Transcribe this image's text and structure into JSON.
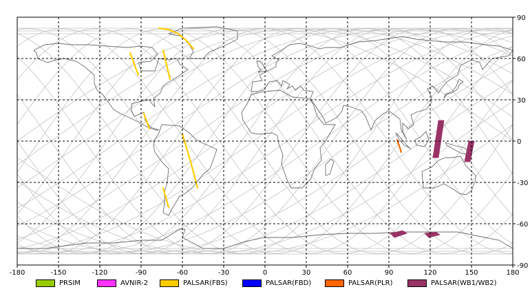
{
  "map": {
    "xlim": [
      -180,
      180
    ],
    "ylim": [
      -90,
      90
    ],
    "x_ticks": [
      -180,
      -150,
      -120,
      -90,
      -60,
      -30,
      0,
      30,
      60,
      90,
      120,
      150,
      180
    ],
    "y_ticks": [
      90,
      60,
      30,
      0,
      -30,
      -60,
      -90
    ],
    "x_tick_labels": [
      "-180",
      "-150",
      "-120",
      "-90",
      "-60",
      "-30",
      "0",
      "30",
      "60",
      "90",
      "120",
      "150",
      "180"
    ],
    "y_tick_labels": [
      "90",
      "60",
      "30",
      "0",
      "-30",
      "-60",
      "-90"
    ],
    "grid": true,
    "colors": {
      "coast": "#6b6b6b",
      "orbit": "#c2c2c2",
      "grid": "#000000"
    }
  },
  "legend": [
    {
      "label": "PRSIM",
      "color": "#99cc00"
    },
    {
      "label": "AVNIR-2",
      "color": "#ff33ff"
    },
    {
      "label": "PALSAR(FBS)",
      "color": "#ffcc00"
    },
    {
      "label": "PALSAR(FBD)",
      "color": "#0000ff"
    },
    {
      "label": "PALSAR(PLR)",
      "color": "#ff6600"
    },
    {
      "label": "PALSAR(WB1/WB2)",
      "color": "#993366"
    }
  ],
  "observations": [
    {
      "sensor": "PALSAR(FBS)",
      "color": "#ffcc00",
      "path": [
        [
          -77,
          82
        ],
        [
          -70,
          81
        ],
        [
          -63,
          78
        ],
        [
          -57,
          73
        ],
        [
          -52,
          67
        ]
      ]
    },
    {
      "sensor": "PALSAR(FBS)",
      "color": "#ffcc00",
      "path": [
        [
          -98,
          64
        ],
        [
          -92,
          48
        ]
      ]
    },
    {
      "sensor": "PALSAR(FBS)",
      "color": "#ffcc00",
      "path": [
        [
          -74,
          66
        ],
        [
          -69,
          45
        ]
      ]
    },
    {
      "sensor": "PALSAR(FBS)",
      "color": "#ffcc00",
      "path": [
        [
          -88,
          20
        ],
        [
          -84,
          9
        ]
      ]
    },
    {
      "sensor": "PALSAR(FBS)",
      "color": "#ffcc00",
      "path": [
        [
          -60,
          5
        ],
        [
          -54,
          -15
        ],
        [
          -49,
          -34
        ]
      ]
    },
    {
      "sensor": "PALSAR(FBS)",
      "color": "#ffcc00",
      "path": [
        [
          -74,
          -34
        ],
        [
          -70,
          -48
        ]
      ]
    },
    {
      "sensor": "PALSAR(PLR)",
      "color": "#ff6600",
      "path": [
        [
          96,
          1
        ],
        [
          99,
          -8
        ]
      ]
    },
    {
      "sensor": "PALSAR(WB1/WB2)",
      "color": "#993366",
      "polygon": [
        [
          126,
          15
        ],
        [
          130,
          15
        ],
        [
          126,
          -12
        ],
        [
          122,
          -12
        ]
      ]
    },
    {
      "sensor": "PALSAR(WB1/WB2)",
      "color": "#993366",
      "polygon": [
        [
          148,
          0
        ],
        [
          152,
          0
        ],
        [
          149,
          -15
        ],
        [
          145,
          -15
        ]
      ]
    },
    {
      "sensor": "PALSAR(WB1/WB2)",
      "color": "#993366",
      "polygon": [
        [
          91,
          -67
        ],
        [
          100,
          -65
        ],
        [
          103,
          -67
        ],
        [
          94,
          -70
        ]
      ]
    },
    {
      "sensor": "PALSAR(WB1/WB2)",
      "color": "#993366",
      "polygon": [
        [
          116,
          -67
        ],
        [
          124,
          -66
        ],
        [
          127,
          -68
        ],
        [
          119,
          -70
        ]
      ]
    }
  ],
  "coastlines": [
    [
      [
        -168,
        66
      ],
      [
        -160,
        70
      ],
      [
        -150,
        71
      ],
      [
        -140,
        70
      ],
      [
        -128,
        70
      ],
      [
        -115,
        69
      ],
      [
        -100,
        68
      ],
      [
        -90,
        69
      ],
      [
        -82,
        68
      ],
      [
        -78,
        63
      ],
      [
        -83,
        58
      ],
      [
        -92,
        57
      ],
      [
        -90,
        51
      ],
      [
        -80,
        51
      ],
      [
        -77,
        60
      ],
      [
        -70,
        59
      ],
      [
        -64,
        60
      ],
      [
        -62,
        56
      ],
      [
        -56,
        52
      ],
      [
        -66,
        45
      ],
      [
        -70,
        43
      ],
      [
        -74,
        40
      ],
      [
        -76,
        35
      ],
      [
        -81,
        31
      ],
      [
        -80,
        25
      ],
      [
        -82,
        27
      ],
      [
        -84,
        30
      ],
      [
        -90,
        29
      ],
      [
        -97,
        27
      ],
      [
        -97,
        22
      ],
      [
        -95,
        18
      ],
      [
        -88,
        21
      ],
      [
        -87,
        15
      ],
      [
        -83,
        10
      ],
      [
        -80,
        9
      ],
      [
        -77,
        8
      ],
      [
        -79,
        8
      ],
      [
        -85,
        10
      ],
      [
        -92,
        14
      ],
      [
        -105,
        20
      ],
      [
        -110,
        23
      ],
      [
        -115,
        30
      ],
      [
        -118,
        34
      ],
      [
        -122,
        37
      ],
      [
        -124,
        42
      ],
      [
        -124,
        48
      ],
      [
        -131,
        54
      ],
      [
        -137,
        58
      ],
      [
        -146,
        60
      ],
      [
        -152,
        59
      ],
      [
        -158,
        57
      ],
      [
        -165,
        60
      ],
      [
        -166,
        64
      ],
      [
        -168,
        66
      ]
    ],
    [
      [
        -75,
        12
      ],
      [
        -62,
        11
      ],
      [
        -55,
        6
      ],
      [
        -50,
        1
      ],
      [
        -44,
        -2
      ],
      [
        -35,
        -6
      ],
      [
        -37,
        -12
      ],
      [
        -40,
        -20
      ],
      [
        -45,
        -24
      ],
      [
        -48,
        -28
      ],
      [
        -53,
        -34
      ],
      [
        -58,
        -38
      ],
      [
        -62,
        -40
      ],
      [
        -65,
        -45
      ],
      [
        -68,
        -50
      ],
      [
        -70,
        -54
      ],
      [
        -74,
        -52
      ],
      [
        -73,
        -45
      ],
      [
        -73,
        -37
      ],
      [
        -71,
        -30
      ],
      [
        -70,
        -20
      ],
      [
        -75,
        -15
      ],
      [
        -80,
        -8
      ],
      [
        -81,
        -3
      ],
      [
        -80,
        1
      ],
      [
        -77,
        6
      ],
      [
        -75,
        12
      ]
    ],
    [
      [
        -55,
        60
      ],
      [
        -45,
        60
      ],
      [
        -40,
        65
      ],
      [
        -30,
        69
      ],
      [
        -20,
        74
      ],
      [
        -20,
        80
      ],
      [
        -35,
        83
      ],
      [
        -60,
        82
      ],
      [
        -70,
        78
      ],
      [
        -60,
        76
      ],
      [
        -55,
        70
      ],
      [
        -52,
        65
      ],
      [
        -55,
        60
      ]
    ],
    [
      [
        -10,
        36
      ],
      [
        -9,
        43
      ],
      [
        -2,
        44
      ],
      [
        -4,
        48
      ],
      [
        2,
        51
      ],
      [
        8,
        54
      ],
      [
        8,
        57
      ],
      [
        10,
        59
      ],
      [
        5,
        62
      ],
      [
        12,
        66
      ],
      [
        18,
        70
      ],
      [
        25,
        71
      ],
      [
        30,
        70
      ],
      [
        40,
        67
      ],
      [
        44,
        68
      ],
      [
        55,
        68
      ],
      [
        68,
        72
      ],
      [
        80,
        73
      ],
      [
        100,
        76
      ],
      [
        110,
        74
      ],
      [
        130,
        72
      ],
      [
        145,
        72
      ],
      [
        160,
        70
      ],
      [
        170,
        69
      ],
      [
        180,
        66
      ],
      [
        177,
        62
      ],
      [
        165,
        60
      ],
      [
        158,
        52
      ],
      [
        156,
        57
      ],
      [
        150,
        59
      ],
      [
        142,
        55
      ],
      [
        140,
        48
      ],
      [
        132,
        43
      ],
      [
        128,
        38
      ],
      [
        126,
        35
      ],
      [
        122,
        40
      ],
      [
        118,
        38
      ],
      [
        121,
        32
      ],
      [
        121,
        28
      ],
      [
        117,
        23
      ],
      [
        110,
        21
      ],
      [
        106,
        19
      ],
      [
        108,
        12
      ],
      [
        104,
        9
      ],
      [
        100,
        13
      ],
      [
        100,
        7
      ],
      [
        103,
        1
      ],
      [
        99,
        8
      ],
      [
        98,
        16
      ],
      [
        94,
        19
      ],
      [
        90,
        22
      ],
      [
        86,
        20
      ],
      [
        80,
        15
      ],
      [
        77,
        8
      ],
      [
        73,
        18
      ],
      [
        70,
        22
      ],
      [
        62,
        25
      ],
      [
        57,
        26
      ],
      [
        56,
        22
      ],
      [
        52,
        17
      ],
      [
        44,
        13
      ],
      [
        43,
        16
      ],
      [
        39,
        22
      ],
      [
        35,
        28
      ],
      [
        33,
        31
      ],
      [
        35,
        36
      ],
      [
        28,
        37
      ],
      [
        26,
        40
      ],
      [
        22,
        37
      ],
      [
        20,
        40
      ],
      [
        16,
        38
      ],
      [
        18,
        41
      ],
      [
        13,
        44
      ],
      [
        12,
        40
      ],
      [
        9,
        44
      ],
      [
        3,
        43
      ],
      [
        -1,
        37
      ],
      [
        -6,
        36
      ],
      [
        -10,
        36
      ]
    ],
    [
      [
        -17,
        21
      ],
      [
        -16,
        15
      ],
      [
        -10,
        6
      ],
      [
        -5,
        5
      ],
      [
        5,
        6
      ],
      [
        9,
        4
      ],
      [
        10,
        -2
      ],
      [
        13,
        -10
      ],
      [
        12,
        -17
      ],
      [
        16,
        -28
      ],
      [
        19,
        -34
      ],
      [
        27,
        -34
      ],
      [
        33,
        -28
      ],
      [
        36,
        -20
      ],
      [
        41,
        -14
      ],
      [
        40,
        -5
      ],
      [
        44,
        0
      ],
      [
        51,
        12
      ],
      [
        43,
        12
      ],
      [
        38,
        18
      ],
      [
        35,
        27
      ],
      [
        32,
        31
      ],
      [
        20,
        32
      ],
      [
        11,
        37
      ],
      [
        0,
        36
      ],
      [
        -10,
        34
      ],
      [
        -13,
        27
      ],
      [
        -17,
        21
      ]
    ],
    [
      [
        114,
        -22
      ],
      [
        115,
        -34
      ],
      [
        123,
        -34
      ],
      [
        130,
        -31
      ],
      [
        137,
        -35
      ],
      [
        141,
        -38
      ],
      [
        146,
        -39
      ],
      [
        150,
        -36
      ],
      [
        153,
        -28
      ],
      [
        153,
        -25
      ],
      [
        146,
        -18
      ],
      [
        142,
        -11
      ],
      [
        136,
        -12
      ],
      [
        131,
        -12
      ],
      [
        126,
        -14
      ],
      [
        121,
        -19
      ],
      [
        114,
        -22
      ]
    ],
    [
      [
        95,
        6
      ],
      [
        98,
        3
      ],
      [
        103,
        -3
      ],
      [
        106,
        -6
      ],
      [
        105,
        -5
      ],
      [
        101,
        -3
      ],
      [
        97,
        2
      ],
      [
        95,
        6
      ]
    ],
    [
      [
        109,
        1
      ],
      [
        110,
        -3
      ],
      [
        116,
        -4
      ],
      [
        119,
        1
      ],
      [
        117,
        7
      ],
      [
        113,
        3
      ],
      [
        109,
        1
      ]
    ],
    [
      [
        131,
        -1
      ],
      [
        137,
        -3
      ],
      [
        145,
        -5
      ],
      [
        150,
        -10
      ],
      [
        143,
        -9
      ],
      [
        139,
        -7
      ],
      [
        132,
        -3
      ],
      [
        131,
        -1
      ]
    ],
    [
      [
        -5,
        50
      ],
      [
        1,
        51
      ],
      [
        -1,
        55
      ],
      [
        -3,
        58
      ],
      [
        -6,
        58
      ],
      [
        -5,
        54
      ],
      [
        -3,
        52
      ],
      [
        -5,
        50
      ]
    ],
    [
      [
        130,
        31
      ],
      [
        132,
        34
      ],
      [
        136,
        35
      ],
      [
        140,
        38
      ],
      [
        141,
        41
      ],
      [
        144,
        43
      ],
      [
        141,
        45
      ],
      [
        139,
        40
      ],
      [
        136,
        36
      ],
      [
        131,
        34
      ],
      [
        130,
        31
      ]
    ],
    [
      [
        44,
        -25
      ],
      [
        47,
        -24
      ],
      [
        50,
        -15
      ],
      [
        48,
        -13
      ],
      [
        44,
        -17
      ],
      [
        44,
        -25
      ]
    ],
    [
      [
        -180,
        -78
      ],
      [
        -160,
        -78
      ],
      [
        -145,
        -76
      ],
      [
        -130,
        -74
      ],
      [
        -110,
        -74
      ],
      [
        -90,
        -72
      ],
      [
        -75,
        -72
      ],
      [
        -62,
        -64
      ],
      [
        -58,
        -64
      ],
      [
        -60,
        -70
      ],
      [
        -45,
        -78
      ],
      [
        -30,
        -78
      ],
      [
        -15,
        -73
      ],
      [
        0,
        -70
      ],
      [
        20,
        -70
      ],
      [
        40,
        -68
      ],
      [
        60,
        -67
      ],
      [
        80,
        -67
      ],
      [
        100,
        -66
      ],
      [
        120,
        -66
      ],
      [
        140,
        -66
      ],
      [
        160,
        -70
      ],
      [
        170,
        -72
      ],
      [
        180,
        -78
      ]
    ]
  ]
}
